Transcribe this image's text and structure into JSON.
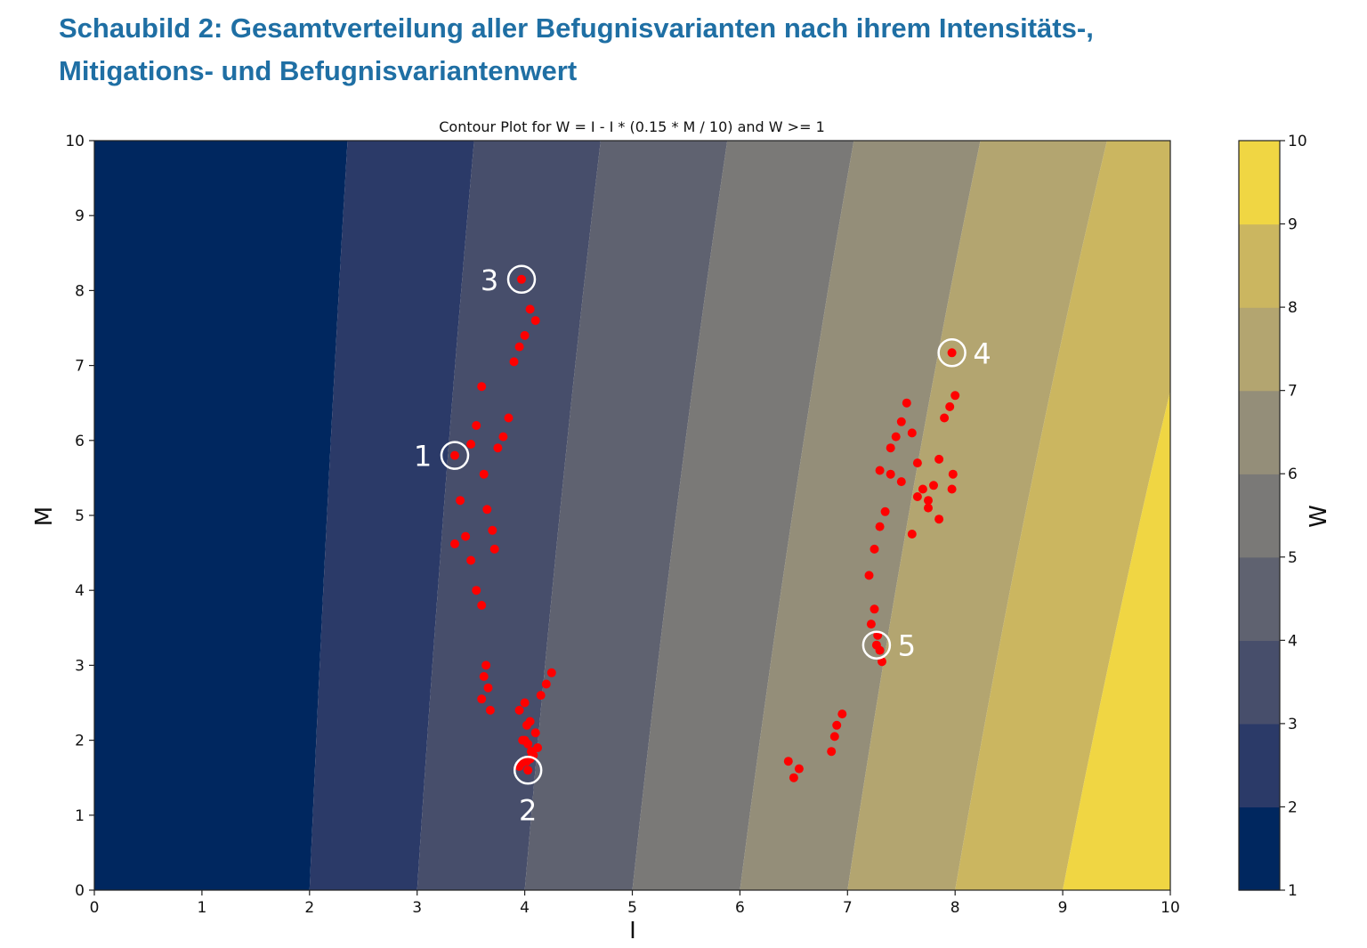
{
  "figure": {
    "heading_line1": "Schaubild 2: Gesamtverteilung aller Befugnisvarianten nach ihrem Intensitäts-,",
    "heading_line2": "Mitigations- und Befugnisvariantenwert"
  },
  "chart_data": {
    "type": "scatter",
    "title": "Contour Plot for W = I - I * (0.15 * M / 10) and W >= 1",
    "xlabel": "I",
    "ylabel": "M",
    "xlim": [
      0,
      10
    ],
    "ylim": [
      0,
      10
    ],
    "x_ticks": [
      0,
      1,
      2,
      3,
      4,
      5,
      6,
      7,
      8,
      9,
      10
    ],
    "y_ticks": [
      0,
      1,
      2,
      3,
      4,
      5,
      6,
      7,
      8,
      9,
      10
    ],
    "grid": false,
    "contour": {
      "formula": "W = I - I * (0.15 * M / 10)",
      "levels": [
        1,
        2,
        3,
        4,
        5,
        6,
        7,
        8,
        9,
        10
      ],
      "colors": [
        "#00275f",
        "#2b3a68",
        "#474e6b",
        "#5f6270",
        "#7a7977",
        "#948e79",
        "#b3a570",
        "#cbb660",
        "#f0d643"
      ]
    },
    "colorbar": {
      "label": "W",
      "ticks": [
        1,
        2,
        3,
        4,
        5,
        6,
        7,
        8,
        9,
        10
      ]
    },
    "marker_color": "#ff0000",
    "callouts": [
      {
        "label": "1",
        "x": 3.35,
        "y": 5.8
      },
      {
        "label": "2",
        "x": 4.03,
        "y": 1.6
      },
      {
        "label": "3",
        "x": 3.97,
        "y": 8.15
      },
      {
        "label": "4",
        "x": 7.97,
        "y": 7.17
      },
      {
        "label": "5",
        "x": 7.27,
        "y": 3.27
      }
    ],
    "series": [
      {
        "name": "",
        "x": [
          3.35,
          4.03,
          3.97,
          7.97,
          7.27,
          3.35,
          3.45,
          3.5,
          3.55,
          3.6,
          3.62,
          3.65,
          3.7,
          3.72,
          3.75,
          3.8,
          3.85,
          3.4,
          3.5,
          3.55,
          3.9,
          3.6,
          3.95,
          4.0,
          4.05,
          4.1,
          4.0,
          4.02,
          3.98,
          4.06,
          7.2,
          7.25,
          7.3,
          7.35,
          7.3,
          7.4,
          7.45,
          7.5,
          7.55,
          7.6,
          7.65,
          7.7,
          7.75,
          7.8,
          7.85,
          7.9,
          7.95,
          8.0,
          7.85,
          7.75,
          7.6,
          7.65,
          7.5,
          7.4,
          7.98,
          7.97,
          7.25,
          7.22,
          7.28,
          7.3,
          7.32,
          3.98,
          4.02,
          4.05,
          3.95,
          4.08,
          4.12,
          3.64,
          3.62,
          3.66,
          3.6,
          3.68,
          3.95,
          4.05,
          4.1,
          4.0,
          4.03,
          4.07,
          4.15,
          4.2,
          4.25,
          6.85,
          6.9,
          6.5,
          6.55,
          6.45,
          6.88,
          6.95
        ],
        "y": [
          5.8,
          1.6,
          8.15,
          7.17,
          3.27,
          4.62,
          4.72,
          5.95,
          6.2,
          6.72,
          5.55,
          5.08,
          4.8,
          4.55,
          5.9,
          6.05,
          6.3,
          5.2,
          4.4,
          4.0,
          7.05,
          3.8,
          7.25,
          7.4,
          7.75,
          7.6,
          2.5,
          2.2,
          2.0,
          1.85,
          4.2,
          4.55,
          4.85,
          5.05,
          5.6,
          5.9,
          6.05,
          6.25,
          6.5,
          6.1,
          5.7,
          5.35,
          5.1,
          5.4,
          5.75,
          6.3,
          6.45,
          6.6,
          4.95,
          5.2,
          4.75,
          5.25,
          5.45,
          5.55,
          5.55,
          5.35,
          3.75,
          3.55,
          3.4,
          3.2,
          3.05,
          1.7,
          1.72,
          1.75,
          1.65,
          1.8,
          1.9,
          3.0,
          2.85,
          2.7,
          2.55,
          2.4,
          2.4,
          2.25,
          2.1,
          2.0,
          1.95,
          1.85,
          2.6,
          2.75,
          2.9,
          1.85,
          2.2,
          1.5,
          1.62,
          1.72,
          2.05,
          2.35
        ]
      }
    ]
  }
}
